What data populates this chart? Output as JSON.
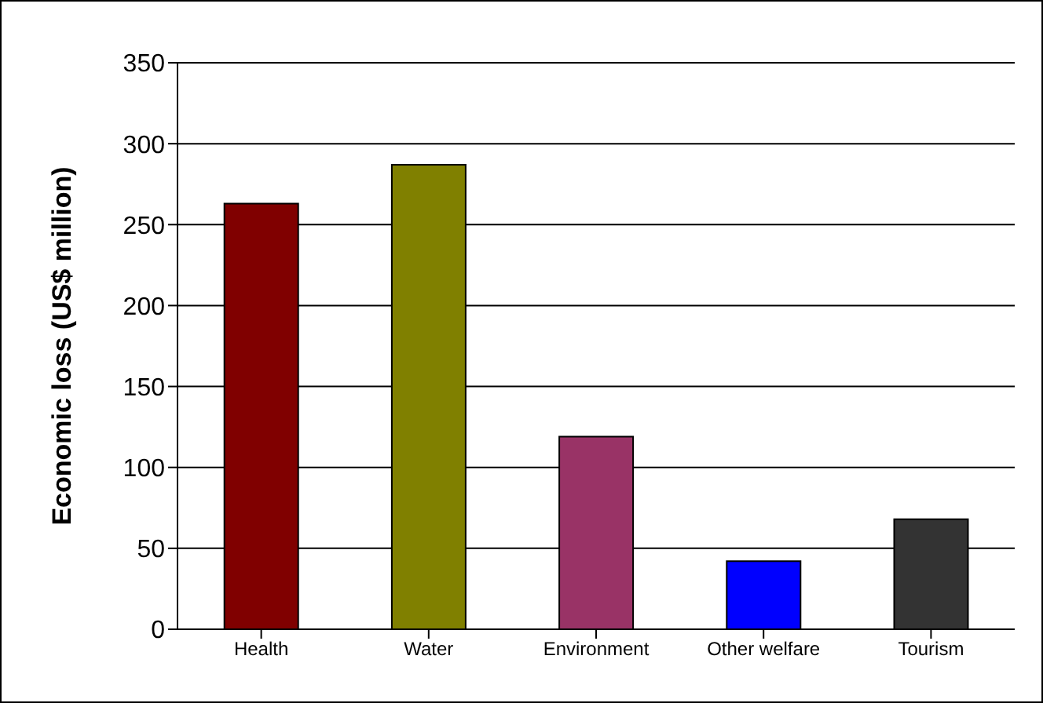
{
  "chart_data": {
    "type": "bar",
    "ylabel": "Economic loss (US$ million)",
    "categories": [
      "Health",
      "Water",
      "Environment",
      "Other welfare",
      "Tourism"
    ],
    "values": [
      263,
      287,
      119,
      42,
      68
    ],
    "colors": [
      "#800000",
      "#808000",
      "#993366",
      "#0000ff",
      "#333333"
    ],
    "ylim": [
      0,
      350
    ],
    "yticks": [
      0,
      50,
      100,
      150,
      200,
      250,
      300,
      350
    ],
    "grid": "y"
  }
}
